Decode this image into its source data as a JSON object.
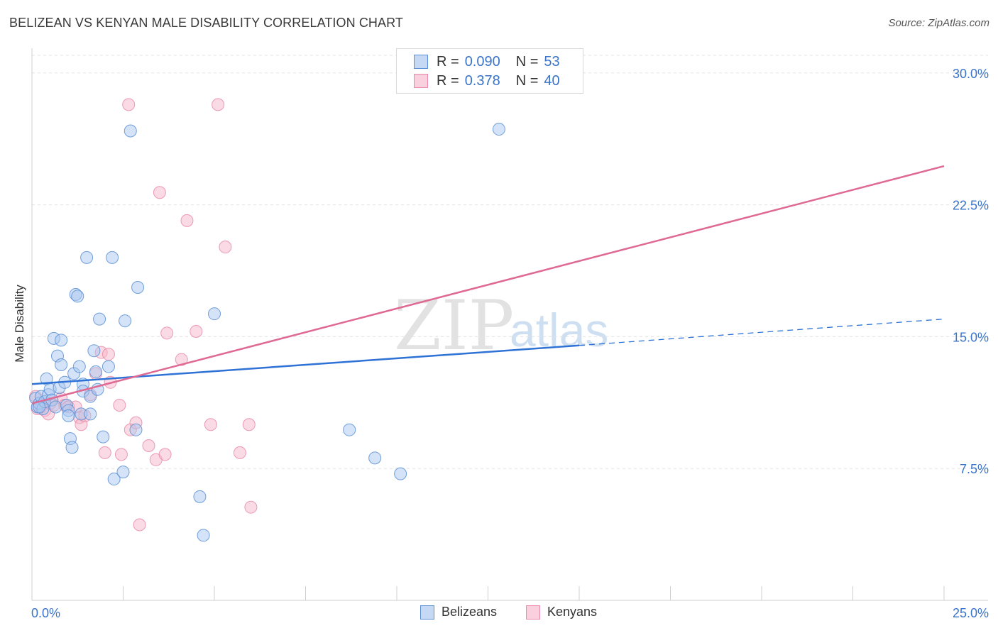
{
  "title": "BELIZEAN VS KENYAN MALE DISABILITY CORRELATION CHART",
  "source": "Source: ZipAtlas.com",
  "colors": {
    "blue_fill": "#aac8ef",
    "blue_stroke": "#5b8fd6",
    "blue_line": "#2f72d6",
    "pink_fill": "#f6b5ca",
    "pink_stroke": "#e98ba8",
    "pink_line": "#e06994",
    "grid": "#e3e3e3",
    "axis_text": "#3a74c9"
  },
  "legend_top": {
    "rows": [
      {
        "r_label": "R =",
        "r_value": "0.090",
        "n_label": "N =",
        "n_value": "53"
      },
      {
        "r_label": "R =",
        "r_value": "0.378",
        "n_label": "N =",
        "n_value": "40"
      }
    ]
  },
  "legend_bottom": {
    "items": [
      "Belizeans",
      "Kenyans"
    ]
  },
  "watermark": {
    "part1": "ZIP",
    "part2": "atlas"
  },
  "chart_data": {
    "type": "scatter",
    "title": "BELIZEAN VS KENYAN MALE DISABILITY CORRELATION CHART",
    "xlabel": "",
    "ylabel": "Male Disability",
    "xlim": [
      0,
      25
    ],
    "ylim": [
      0,
      31
    ],
    "x_tick_labels": [
      "0.0%",
      "25.0%"
    ],
    "y_ticks": [
      7.5,
      15.0,
      22.5,
      30.0
    ],
    "y_tick_labels": [
      "7.5%",
      "15.0%",
      "22.5%",
      "30.0%"
    ],
    "series": [
      {
        "name": "Belizeans",
        "R": 0.09,
        "N": 53,
        "trend": {
          "x0": 0.0,
          "y0": 12.3,
          "x1": 15.0,
          "y1": 14.5,
          "dash_to_x": 25.0,
          "dash_to_y": 16.0
        },
        "points": [
          [
            0.1,
            11.5
          ],
          [
            0.15,
            11.0
          ],
          [
            0.2,
            11.2
          ],
          [
            0.25,
            11.6
          ],
          [
            0.3,
            10.9
          ],
          [
            0.35,
            11.3
          ],
          [
            0.4,
            12.6
          ],
          [
            0.45,
            11.7
          ],
          [
            0.5,
            12.0
          ],
          [
            0.55,
            11.4
          ],
          [
            0.6,
            14.9
          ],
          [
            0.65,
            11.0
          ],
          [
            0.7,
            13.9
          ],
          [
            0.75,
            12.1
          ],
          [
            0.8,
            13.4
          ],
          [
            0.8,
            14.8
          ],
          [
            0.9,
            12.4
          ],
          [
            0.95,
            11.1
          ],
          [
            1.0,
            10.8
          ],
          [
            1.0,
            10.5
          ],
          [
            1.05,
            9.2
          ],
          [
            1.1,
            8.7
          ],
          [
            1.15,
            12.9
          ],
          [
            1.2,
            17.4
          ],
          [
            1.25,
            17.3
          ],
          [
            1.3,
            13.3
          ],
          [
            1.35,
            10.6
          ],
          [
            1.4,
            12.3
          ],
          [
            1.4,
            11.9
          ],
          [
            1.5,
            19.5
          ],
          [
            1.6,
            11.6
          ],
          [
            1.6,
            10.6
          ],
          [
            1.7,
            14.2
          ],
          [
            1.75,
            13.0
          ],
          [
            1.8,
            12.0
          ],
          [
            1.85,
            16.0
          ],
          [
            1.95,
            9.3
          ],
          [
            2.1,
            13.3
          ],
          [
            2.2,
            19.5
          ],
          [
            2.25,
            6.9
          ],
          [
            2.5,
            7.3
          ],
          [
            2.55,
            15.9
          ],
          [
            2.7,
            26.7
          ],
          [
            2.85,
            9.7
          ],
          [
            2.9,
            17.8
          ],
          [
            4.6,
            5.9
          ],
          [
            4.7,
            3.7
          ],
          [
            5.0,
            16.3
          ],
          [
            8.7,
            9.7
          ],
          [
            9.4,
            8.1
          ],
          [
            10.1,
            7.2
          ],
          [
            12.8,
            26.8
          ],
          [
            0.2,
            11.0
          ]
        ]
      },
      {
        "name": "Kenyans",
        "R": 0.378,
        "N": 40,
        "trend": {
          "x0": 0.0,
          "y0": 11.2,
          "x1": 25.0,
          "y1": 24.7
        },
        "points": [
          [
            0.1,
            11.6
          ],
          [
            0.15,
            10.9
          ],
          [
            0.25,
            11.0
          ],
          [
            0.35,
            10.8
          ],
          [
            0.45,
            10.6
          ],
          [
            0.5,
            11.2
          ],
          [
            0.6,
            11.1
          ],
          [
            0.8,
            11.5
          ],
          [
            0.9,
            11.1
          ],
          [
            1.0,
            11.0
          ],
          [
            1.2,
            11.0
          ],
          [
            1.3,
            10.4
          ],
          [
            1.35,
            10.0
          ],
          [
            1.45,
            10.5
          ],
          [
            1.6,
            11.7
          ],
          [
            1.75,
            12.9
          ],
          [
            1.9,
            14.1
          ],
          [
            2.0,
            8.4
          ],
          [
            2.1,
            14.0
          ],
          [
            2.15,
            12.4
          ],
          [
            2.4,
            11.1
          ],
          [
            2.45,
            8.3
          ],
          [
            2.65,
            28.2
          ],
          [
            2.7,
            9.7
          ],
          [
            2.85,
            10.1
          ],
          [
            2.95,
            4.3
          ],
          [
            3.2,
            8.8
          ],
          [
            3.4,
            8.0
          ],
          [
            3.5,
            23.2
          ],
          [
            3.65,
            8.3
          ],
          [
            3.7,
            15.2
          ],
          [
            4.1,
            13.7
          ],
          [
            4.25,
            21.6
          ],
          [
            4.5,
            15.3
          ],
          [
            4.9,
            10.0
          ],
          [
            5.1,
            28.2
          ],
          [
            5.3,
            20.1
          ],
          [
            5.7,
            8.4
          ],
          [
            5.95,
            10.0
          ],
          [
            6.0,
            5.3
          ]
        ]
      }
    ]
  }
}
